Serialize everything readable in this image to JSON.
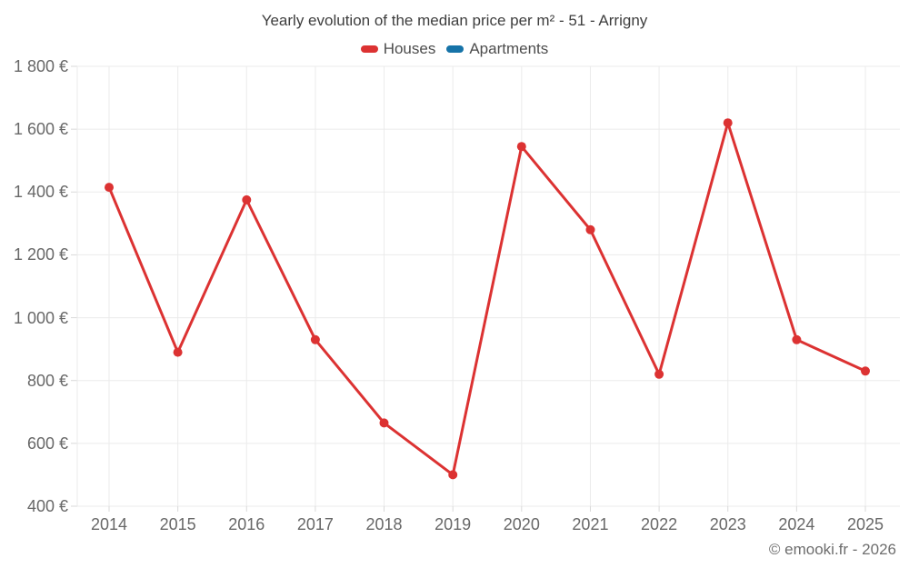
{
  "header": {
    "title": "Yearly evolution of the median price per m² - 51 - Arrigny"
  },
  "legend": {
    "items": [
      {
        "label": "Houses",
        "color": "#dc3232"
      },
      {
        "label": "Apartments",
        "color": "#1673a8"
      }
    ]
  },
  "footer": {
    "credit": "© emooki.fr - 2026"
  },
  "chart_data": {
    "type": "line",
    "title": "Yearly evolution of the median price per m² - 51 - Arrigny",
    "x": [
      "2014",
      "2015",
      "2016",
      "2017",
      "2018",
      "2019",
      "2020",
      "2021",
      "2022",
      "2023",
      "2024",
      "2025"
    ],
    "series": [
      {
        "name": "Houses",
        "color": "#dc3232",
        "values": [
          1415,
          890,
          1375,
          930,
          665,
          500,
          1545,
          1280,
          820,
          1620,
          930,
          830
        ]
      },
      {
        "name": "Apartments",
        "color": "#1673a8",
        "values": []
      }
    ],
    "xlabel": "",
    "ylabel": "",
    "ylim": [
      400,
      1800
    ],
    "ytick_step": 200,
    "yticks": [
      {
        "value": 1800,
        "label": "1 800 €"
      },
      {
        "value": 1600,
        "label": "1 600 €"
      },
      {
        "value": 1400,
        "label": "1 400 €"
      },
      {
        "value": 1200,
        "label": "1 200 €"
      },
      {
        "value": 1000,
        "label": "1 000 €"
      },
      {
        "value": 800,
        "label": "800 €"
      },
      {
        "value": 600,
        "label": "600 €"
      },
      {
        "value": 400,
        "label": "400 €"
      }
    ],
    "grid": true,
    "legend_position": "top"
  },
  "colors": {
    "grid": "#ebebeb",
    "tick": "#d9d9d9",
    "axis_text": "#686868",
    "title_text": "#3e3e3e",
    "legend_text": "#4d4d4d",
    "footer_text": "#6e6e6e",
    "background": "#ffffff"
  }
}
